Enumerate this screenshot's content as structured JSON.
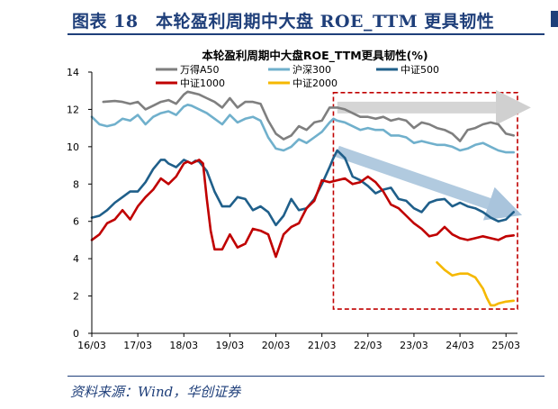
{
  "figure": {
    "label": "图表 18　本轮盈利周期中大盘 ROE_TTM 更具韧性",
    "source": "资料来源：Wind，华创证券"
  },
  "colors": {
    "frame": "#1f3f7a",
    "highlight_box": "#c00000",
    "arrow_gray": "#d0d0d0",
    "arrow_blue": "#a9c4dc"
  },
  "chart_data": {
    "type": "line",
    "title": "本轮盈利周期中大盘ROE_TTM更具韧性(%)",
    "xlabel": "",
    "ylabel": "",
    "ylim": [
      0,
      14
    ],
    "yticks": [
      0,
      2,
      4,
      6,
      8,
      10,
      12,
      14
    ],
    "xlim": [
      0,
      111
    ],
    "x_tick_labels": [
      "16/03",
      "17/03",
      "18/03",
      "19/03",
      "20/03",
      "21/03",
      "22/03",
      "23/03",
      "24/03",
      "25/03"
    ],
    "x_tick_positions": [
      0,
      12,
      24,
      36,
      48,
      60,
      72,
      84,
      96,
      108
    ],
    "grid": false,
    "legend_position": "top",
    "series": [
      {
        "name": "万得A50",
        "color": "#7f7f7f",
        "x": [
          3,
          6,
          8,
          10,
          12,
          14,
          16,
          18,
          20,
          22,
          24,
          25,
          26,
          28,
          30,
          32,
          34,
          36,
          38,
          40,
          42,
          44,
          46,
          48,
          50,
          52,
          54,
          56,
          58,
          60,
          62,
          63,
          64,
          66,
          68,
          70,
          72,
          74,
          76,
          78,
          80,
          82,
          84,
          86,
          88,
          90,
          92,
          94,
          96,
          98,
          100,
          102,
          104,
          106,
          108,
          110
        ],
        "values": [
          12.4,
          12.45,
          12.4,
          12.3,
          12.4,
          12.0,
          12.2,
          12.4,
          12.5,
          12.3,
          12.8,
          12.95,
          12.9,
          12.8,
          12.6,
          12.4,
          12.1,
          12.6,
          12.1,
          12.4,
          12.4,
          12.3,
          11.4,
          10.7,
          10.4,
          10.6,
          11.1,
          10.9,
          11.3,
          11.4,
          12.1,
          12.1,
          12.1,
          12.0,
          11.8,
          11.6,
          11.6,
          11.5,
          11.6,
          11.4,
          11.5,
          11.4,
          11.0,
          11.3,
          11.2,
          11.0,
          10.9,
          10.7,
          10.3,
          10.9,
          11.0,
          11.2,
          11.3,
          11.2,
          10.7,
          10.6
        ]
      },
      {
        "name": "沪深300",
        "color": "#70b0cc",
        "x": [
          0,
          2,
          4,
          6,
          8,
          10,
          12,
          14,
          16,
          18,
          20,
          22,
          24,
          25,
          26,
          28,
          30,
          32,
          34,
          36,
          38,
          40,
          42,
          44,
          46,
          48,
          50,
          52,
          54,
          56,
          58,
          60,
          62,
          63,
          64,
          66,
          68,
          70,
          72,
          74,
          76,
          78,
          80,
          82,
          84,
          86,
          88,
          90,
          92,
          94,
          96,
          98,
          100,
          102,
          104,
          106,
          108,
          110
        ],
        "values": [
          11.6,
          11.2,
          11.1,
          11.2,
          11.5,
          11.4,
          11.7,
          11.2,
          11.6,
          11.8,
          11.9,
          11.7,
          12.15,
          12.25,
          12.2,
          12.0,
          11.8,
          11.5,
          11.2,
          11.7,
          11.3,
          11.5,
          11.6,
          11.4,
          10.5,
          9.9,
          9.8,
          10.0,
          10.4,
          10.2,
          10.5,
          10.8,
          11.3,
          11.5,
          11.4,
          11.3,
          11.1,
          10.9,
          11.0,
          10.9,
          10.9,
          10.6,
          10.6,
          10.5,
          10.2,
          10.3,
          10.2,
          10.1,
          10.1,
          10.0,
          9.8,
          9.9,
          10.1,
          10.2,
          10.0,
          9.8,
          9.7,
          9.7
        ]
      },
      {
        "name": "中证500",
        "color": "#1f5f8a",
        "x": [
          0,
          2,
          4,
          6,
          8,
          10,
          12,
          14,
          16,
          18,
          19,
          20,
          22,
          24,
          26,
          27,
          28,
          30,
          32,
          34,
          36,
          38,
          40,
          42,
          44,
          46,
          48,
          50,
          52,
          54,
          56,
          58,
          60,
          62,
          63,
          64,
          66,
          68,
          70,
          72,
          74,
          76,
          78,
          80,
          82,
          84,
          86,
          88,
          90,
          92,
          94,
          96,
          98,
          100,
          102,
          104,
          106,
          108,
          110
        ],
        "values": [
          6.2,
          6.3,
          6.6,
          7.0,
          7.3,
          7.6,
          7.6,
          8.1,
          8.8,
          9.3,
          9.3,
          9.1,
          8.9,
          9.3,
          9.1,
          9.25,
          9.2,
          8.7,
          7.6,
          6.8,
          6.8,
          7.3,
          7.2,
          6.6,
          6.8,
          6.5,
          5.8,
          6.3,
          7.2,
          6.6,
          6.7,
          7.2,
          8.0,
          8.9,
          9.4,
          9.8,
          9.4,
          8.4,
          8.2,
          7.9,
          7.5,
          7.7,
          7.8,
          7.2,
          7.1,
          6.7,
          6.5,
          7.0,
          7.15,
          7.2,
          6.8,
          7.0,
          6.8,
          6.7,
          6.5,
          6.2,
          6.0,
          6.1,
          6.5
        ]
      },
      {
        "name": "中证1000",
        "color": "#c00000",
        "x": [
          0,
          2,
          4,
          6,
          8,
          10,
          12,
          14,
          16,
          18,
          20,
          22,
          24,
          25,
          26,
          28,
          29,
          30,
          31,
          32,
          34,
          36,
          38,
          40,
          42,
          44,
          46,
          48,
          50,
          52,
          54,
          56,
          58,
          60,
          62,
          64,
          66,
          68,
          70,
          72,
          74,
          76,
          78,
          80,
          82,
          84,
          86,
          88,
          90,
          92,
          94,
          96,
          98,
          100,
          102,
          104,
          106,
          108,
          110
        ],
        "values": [
          5.0,
          5.3,
          5.9,
          6.1,
          6.6,
          6.1,
          6.8,
          7.3,
          7.7,
          8.3,
          8.0,
          8.4,
          9.1,
          9.2,
          9.1,
          9.3,
          9.1,
          7.2,
          5.5,
          4.5,
          4.5,
          5.3,
          4.6,
          4.8,
          5.6,
          5.5,
          5.3,
          4.1,
          5.3,
          5.7,
          5.9,
          6.7,
          7.1,
          8.2,
          8.1,
          8.2,
          8.3,
          8.0,
          8.1,
          8.4,
          8.1,
          7.6,
          6.9,
          6.7,
          6.3,
          5.9,
          5.6,
          5.2,
          5.3,
          5.7,
          5.3,
          5.1,
          5.0,
          5.1,
          5.2,
          5.1,
          5.0,
          5.2,
          5.25
        ]
      },
      {
        "name": "中证2000",
        "color": "#f5b800",
        "x": [
          90,
          92,
          94,
          96,
          98,
          100,
          102,
          103,
          104,
          105,
          106,
          108,
          110
        ],
        "values": [
          3.8,
          3.4,
          3.1,
          3.2,
          3.2,
          3.0,
          2.4,
          1.9,
          1.5,
          1.5,
          1.6,
          1.7,
          1.75
        ]
      }
    ],
    "annotations": [
      {
        "type": "dashed-box",
        "x_range": [
          63,
          111
        ],
        "y_range": [
          1.3,
          12.9
        ]
      },
      {
        "type": "arrow",
        "color": "gray",
        "from": [
          64,
          12.1
        ],
        "to": [
          109,
          12.1
        ]
      },
      {
        "type": "arrow",
        "color": "blue",
        "from": [
          64,
          9.75
        ],
        "to": [
          107,
          6.7
        ]
      }
    ]
  }
}
